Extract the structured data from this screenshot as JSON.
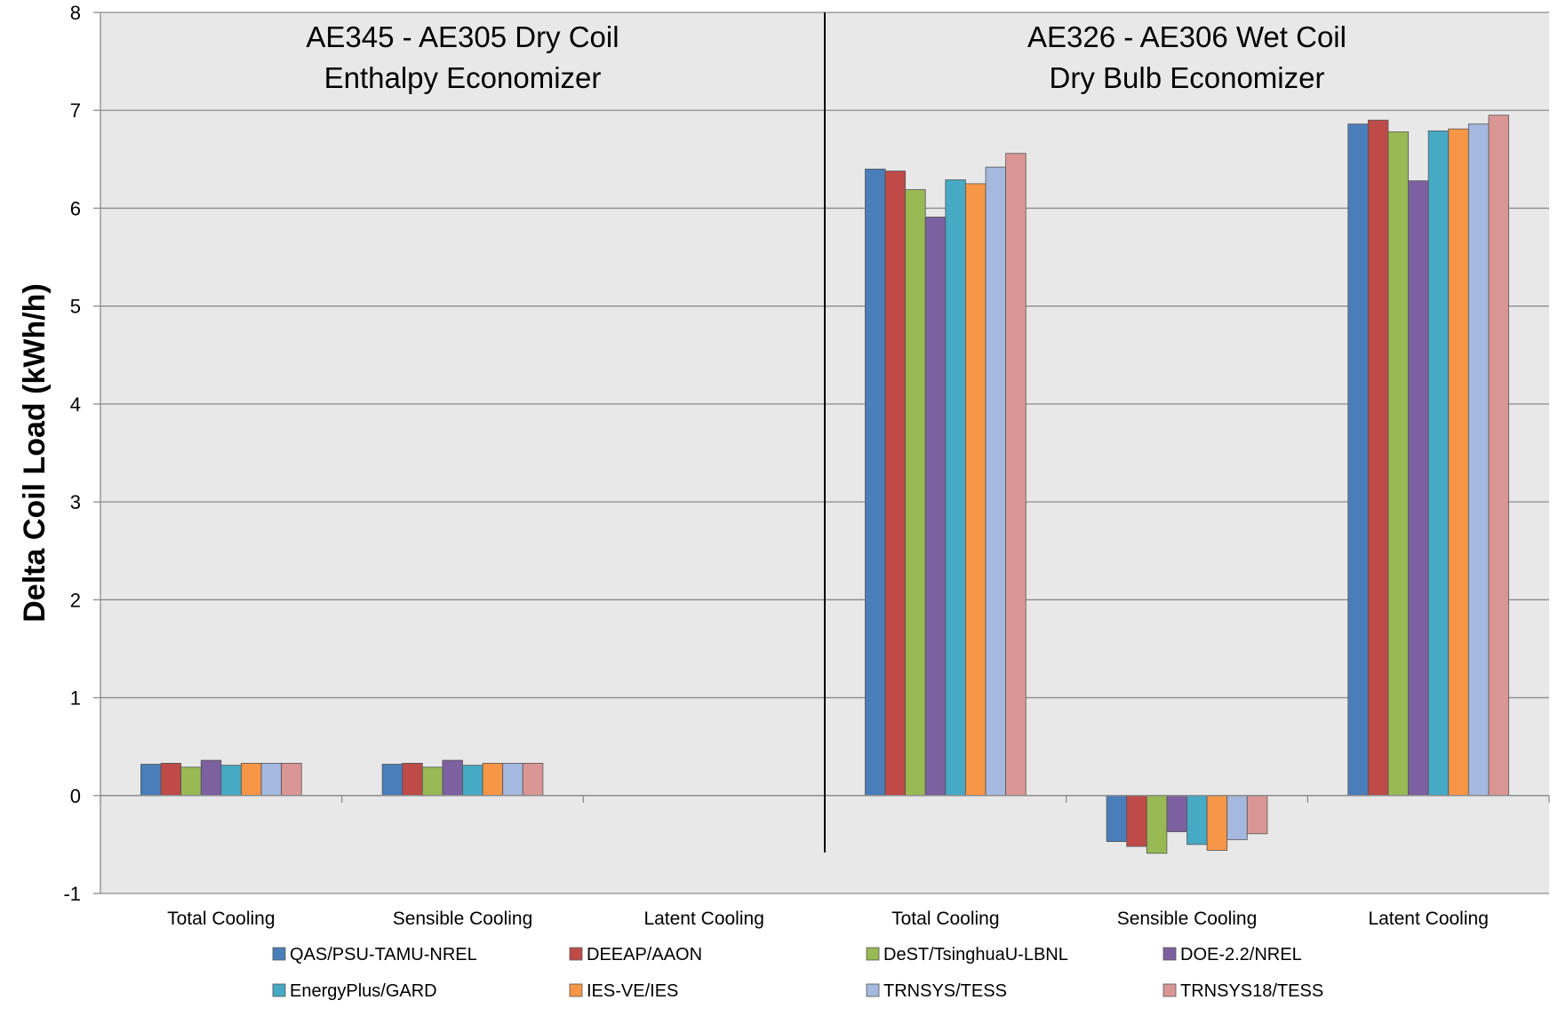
{
  "chart_data": {
    "type": "bar",
    "title": "",
    "xlabel": "",
    "ylabel": "Delta Coil Load (kWh/h)",
    "ylim": [
      -1,
      8
    ],
    "yticks": [
      -1,
      0,
      1,
      2,
      3,
      4,
      5,
      6,
      7,
      8
    ],
    "grid": true,
    "legend_position": "bottom",
    "panels": [
      {
        "line1": "AE345 - AE305 Dry Coil",
        "line2": "Enthalpy Economizer"
      },
      {
        "line1": "AE326 - AE306 Wet Coil",
        "line2": "Dry Bulb Economizer"
      }
    ],
    "categories": [
      "Total Cooling",
      "Sensible Cooling",
      "Latent Cooling",
      "Total Cooling",
      "Sensible Cooling",
      "Latent Cooling"
    ],
    "series": [
      {
        "name": "QAS/PSU-TAMU-NREL",
        "color": "#4A7EBB",
        "values": [
          0.32,
          0.32,
          0,
          6.4,
          -0.47,
          6.86
        ]
      },
      {
        "name": "DEEAP/AAON",
        "color": "#BE4B48",
        "values": [
          0.33,
          0.33,
          0,
          6.38,
          -0.52,
          6.9
        ]
      },
      {
        "name": "DeST/TsinghuaU-LBNL",
        "color": "#98B954",
        "values": [
          0.29,
          0.29,
          0,
          6.19,
          -0.59,
          6.78
        ]
      },
      {
        "name": "DOE-2.2/NREL",
        "color": "#7D60A0",
        "values": [
          0.36,
          0.36,
          0,
          5.91,
          -0.37,
          6.28
        ]
      },
      {
        "name": "EnergyPlus/GARD",
        "color": "#46AAC5",
        "values": [
          0.31,
          0.31,
          0,
          6.29,
          -0.5,
          6.79
        ]
      },
      {
        "name": "IES-VE/IES",
        "color": "#F79646",
        "values": [
          0.33,
          0.33,
          0,
          6.25,
          -0.56,
          6.81
        ]
      },
      {
        "name": "TRNSYS/TESS",
        "color": "#A5B8DE",
        "values": [
          0.33,
          0.33,
          0,
          6.42,
          -0.45,
          6.86
        ]
      },
      {
        "name": "TRNSYS18/TESS",
        "color": "#DA9694",
        "values": [
          0.33,
          0.33,
          0,
          6.56,
          -0.39,
          6.95
        ]
      }
    ]
  }
}
